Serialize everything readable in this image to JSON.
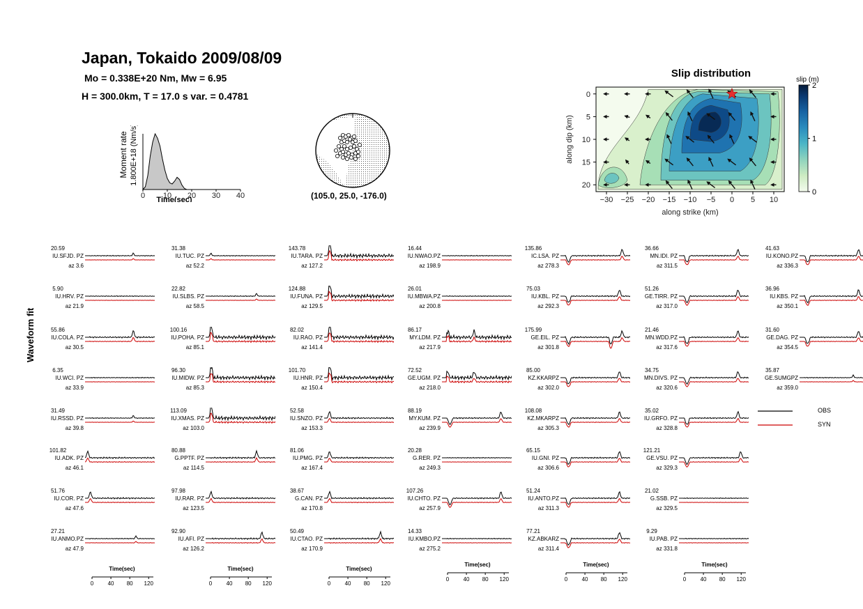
{
  "header": {
    "title": "Japan, Tokaido 2009/08/09",
    "line1": "Mo =  0.338E+20 Nm,   Mw =  6.95",
    "line2": "H = 300.0km,   T = 17.0 s   var. = 0.4781"
  },
  "chart_data": [
    {
      "type": "area",
      "name": "moment-rate",
      "ylabel": "Moment rate",
      "ytick": "1.800E+18 (Nm/s)",
      "xlabel": "Time(sec)",
      "xticks": [
        0,
        10,
        20,
        30,
        40
      ],
      "xlim": [
        0,
        40
      ],
      "x": [
        0,
        1,
        2,
        3,
        4,
        5,
        6,
        7,
        8,
        9,
        10,
        11,
        12,
        13,
        14,
        15,
        16,
        17,
        18
      ],
      "values": [
        0,
        0.05,
        0.25,
        0.6,
        0.85,
        1.0,
        0.92,
        0.78,
        0.55,
        0.35,
        0.2,
        0.12,
        0.1,
        0.15,
        0.22,
        0.18,
        0.08,
        0.02,
        0
      ],
      "color": "#c8c8c8"
    },
    {
      "type": "heatmap",
      "name": "slip-distribution",
      "title": "Slip distribution",
      "xlabel": "along strike (km)",
      "ylabel": "along dip (km)",
      "xticks": [
        -30,
        -25,
        -20,
        -15,
        -10,
        -5,
        0,
        5,
        10
      ],
      "yticks": [
        0,
        5,
        10,
        15,
        20
      ],
      "xlim": [
        -32.5,
        12.5
      ],
      "ylim": [
        -1.5,
        21.5
      ],
      "colorbar_label": "slip (m)",
      "colorbar_ticks": [
        0,
        1,
        2
      ],
      "hypocenter": [
        0,
        0
      ]
    },
    {
      "type": "line",
      "name": "waveform-fit",
      "ylabel": "Waveform fit",
      "time_axis": {
        "label": "Time(sec)",
        "ticks": [
          0,
          40,
          80,
          120
        ]
      },
      "legend": [
        {
          "name": "OBS",
          "color": "#000000"
        },
        {
          "name": "SYN",
          "color": "#cc0000"
        }
      ],
      "columns": [
        [
          {
            "amp": "20.59",
            "name": "IU.SFJD.  PZ",
            "az": "az 3.6",
            "shape": "quiet",
            "burst": 90
          },
          {
            "amp": "5.90",
            "name": "IU.HRV.   PZ",
            "az": "az 21.9",
            "shape": "quiet",
            "burst": 0
          },
          {
            "amp": "55.86",
            "name": "IU.COLA.  PZ",
            "az": "az 30.5",
            "shape": "spiky",
            "burst": 90
          },
          {
            "amp": "6.35",
            "name": "IU.WCI.   PZ",
            "az": "az 33.9",
            "shape": "quiet",
            "burst": 0
          },
          {
            "amp": "31.49",
            "name": "IU.RSSD.  PZ",
            "az": "az 39.8",
            "shape": "quiet",
            "burst": 90
          },
          {
            "amp": "101.82",
            "name": "IU.ADK.   PZ",
            "az": "az 46.1",
            "shape": "spiky",
            "burst": 5
          },
          {
            "amp": "51.76",
            "name": "IU.COR.   PZ",
            "az": "az 47.6",
            "shape": "spiky",
            "burst": 10
          },
          {
            "amp": "27.21",
            "name": "IU.ANMO.PZ",
            "az": "az 47.9",
            "shape": "quiet",
            "burst": 95
          }
        ],
        [
          {
            "amp": "31.38",
            "name": "IU.TUC.   PZ",
            "az": "az 52.2",
            "shape": "quiet",
            "burst": 10
          },
          {
            "amp": "22.82",
            "name": "IU.SLBS.  PZ",
            "az": "az 58.5",
            "shape": "quiet",
            "burst": 95
          },
          {
            "amp": "100.16",
            "name": "IU.POHA.  PZ",
            "az": "az 85.1",
            "shape": "busy",
            "burst": 10
          },
          {
            "amp": "96.30",
            "name": "IU.MIDW.  PZ",
            "az": "az 85.3",
            "shape": "busy",
            "burst": 10
          },
          {
            "amp": "113.09",
            "name": "IU.XMAS.  PZ",
            "az": "az 103.0",
            "shape": "busy",
            "burst": 10
          },
          {
            "amp": "80.88",
            "name": "G.PPTF.   PZ",
            "az": "az 114.5",
            "shape": "spiky",
            "burst": 95
          },
          {
            "amp": "97.98",
            "name": "IU.RAR.   PZ",
            "az": "az 123.5",
            "shape": "spiky",
            "burst": 10
          },
          {
            "amp": "92.90",
            "name": "IU.AFI.   PZ",
            "az": "az 126.2",
            "shape": "spiky",
            "burst": 105
          }
        ],
        [
          {
            "amp": "143.78",
            "name": "IU.TARA.  PZ",
            "az": "az 127.2",
            "shape": "busy",
            "burst": 10
          },
          {
            "amp": "124.88",
            "name": "IU.FUNA.  PZ",
            "az": "az 129.5",
            "shape": "busy",
            "burst": 10
          },
          {
            "amp": "82.02",
            "name": "IU.RAO.   PZ",
            "az": "az 141.4",
            "shape": "busy",
            "burst": 10
          },
          {
            "amp": "101.70",
            "name": "IU.HNR.   PZ",
            "az": "az 150.4",
            "shape": "busy",
            "burst": 10
          },
          {
            "amp": "52.58",
            "name": "IU.SNZO.  PZ",
            "az": "az 153.3",
            "shape": "spiky",
            "burst": 10
          },
          {
            "amp": "81.06",
            "name": "IU.PMG.   PZ",
            "az": "az 167.4",
            "shape": "spiky",
            "burst": 10
          },
          {
            "amp": "38.67",
            "name": "G.CAN.    PZ",
            "az": "az 170.8",
            "shape": "spiky",
            "burst": 10
          },
          {
            "amp": "50.49",
            "name": "IU.CTAO.  PZ",
            "az": "az 170.9",
            "shape": "spiky",
            "burst": 105
          }
        ],
        [
          {
            "amp": "16.44",
            "name": "IU.NWAO.PZ",
            "az": "az 198.9",
            "shape": "quiet",
            "burst": 0
          },
          {
            "amp": "26.01",
            "name": "IU.MBWA.PZ",
            "az": "az 200.8",
            "shape": "quiet",
            "burst": 0
          },
          {
            "amp": "86.17",
            "name": "MY.LDM.  PZ",
            "az": "az 217.9",
            "shape": "busy",
            "burst": 60
          },
          {
            "amp": "72.52",
            "name": "GE.UGM.  PZ",
            "az": "az 218.0",
            "shape": "busy",
            "burst": 60
          },
          {
            "amp": "88.19",
            "name": "MY.KUM.  PZ",
            "az": "az 239.9",
            "shape": "dip",
            "burst": 110
          },
          {
            "amp": "20.28",
            "name": "G.RER.    PZ",
            "az": "az 249.3",
            "shape": "quiet",
            "burst": 0
          },
          {
            "amp": "107.26",
            "name": "IU.CHTO.  PZ",
            "az": "az 257.9",
            "shape": "dip",
            "burst": 110
          },
          {
            "amp": "14.33",
            "name": "IU.KMBO.PZ",
            "az": "az 275.2",
            "shape": "quiet",
            "burst": 0
          }
        ],
        [
          {
            "amp": "135.86",
            "name": "IC.LSA.   PZ",
            "az": "az 278.3",
            "shape": "dip",
            "burst": 115
          },
          {
            "amp": "75.03",
            "name": "IU.KBL.   PZ",
            "az": "az 292.3",
            "shape": "dip",
            "burst": 110
          },
          {
            "amp": "175.99",
            "name": "GE.EIL.   PZ",
            "az": "az 301.8",
            "shape": "deep",
            "burst": 115
          },
          {
            "amp": "85.00",
            "name": "KZ.KKARPZ",
            "az": "az 302.0",
            "shape": "dip",
            "burst": 110
          },
          {
            "amp": "108.08",
            "name": "KZ.MKARPZ",
            "az": "az 305.3",
            "shape": "dip",
            "burst": 110
          },
          {
            "amp": "65.15",
            "name": "IU.GNI.   PZ",
            "az": "az 306.6",
            "shape": "dip",
            "burst": 110
          },
          {
            "amp": "51.24",
            "name": "IU.ANTO.PZ",
            "az": "az 311.3",
            "shape": "dip",
            "burst": 110
          },
          {
            "amp": "77.21",
            "name": "KZ.ABKARZ",
            "az": "az 311.4",
            "shape": "dip",
            "burst": 110
          }
        ],
        [
          {
            "amp": "36.66",
            "name": "MN.IDI.   PZ",
            "az": "az 311.5",
            "shape": "dip",
            "burst": 110
          },
          {
            "amp": "51.26",
            "name": "GE.TIRR.  PZ",
            "az": "az 317.0",
            "shape": "dip",
            "burst": 110
          },
          {
            "amp": "21.46",
            "name": "MN.WDD.PZ",
            "az": "az 317.6",
            "shape": "dip",
            "burst": 110
          },
          {
            "amp": "34.75",
            "name": "MN.DIVS.  PZ",
            "az": "az 320.6",
            "shape": "dip",
            "burst": 110
          },
          {
            "amp": "35.02",
            "name": "IU.GRFO.  PZ",
            "az": "az 328.8",
            "shape": "dip",
            "burst": 110
          },
          {
            "amp": "121.21",
            "name": "GE.VSU.  PZ",
            "az": "az 329.3",
            "shape": "dip",
            "burst": 115
          },
          {
            "amp": "21.02",
            "name": "G.SSB.    PZ",
            "az": "az 329.5",
            "shape": "quiet",
            "burst": 0
          },
          {
            "amp": "9.29",
            "name": "IU.PAB.   PZ",
            "az": "az 331.8",
            "shape": "quiet",
            "burst": 0
          }
        ],
        [
          {
            "amp": "41.63",
            "name": "IU.KONO.PZ",
            "az": "az 336.3",
            "shape": "dip",
            "burst": 110
          },
          {
            "amp": "36.96",
            "name": "IU.KBS.   PZ",
            "az": "az 350.1",
            "shape": "dip",
            "burst": 110
          },
          {
            "amp": "31.60",
            "name": "GE.DAG.  PZ",
            "az": "az 354.5",
            "shape": "dip",
            "burst": 110
          },
          {
            "amp": "35.87",
            "name": "GE.SUMGPZ",
            "az": "az 359.0",
            "shape": "quiet",
            "burst": 100
          }
        ]
      ]
    }
  ],
  "beachball": {
    "label": "(105.0, 25.0, -176.0)"
  }
}
